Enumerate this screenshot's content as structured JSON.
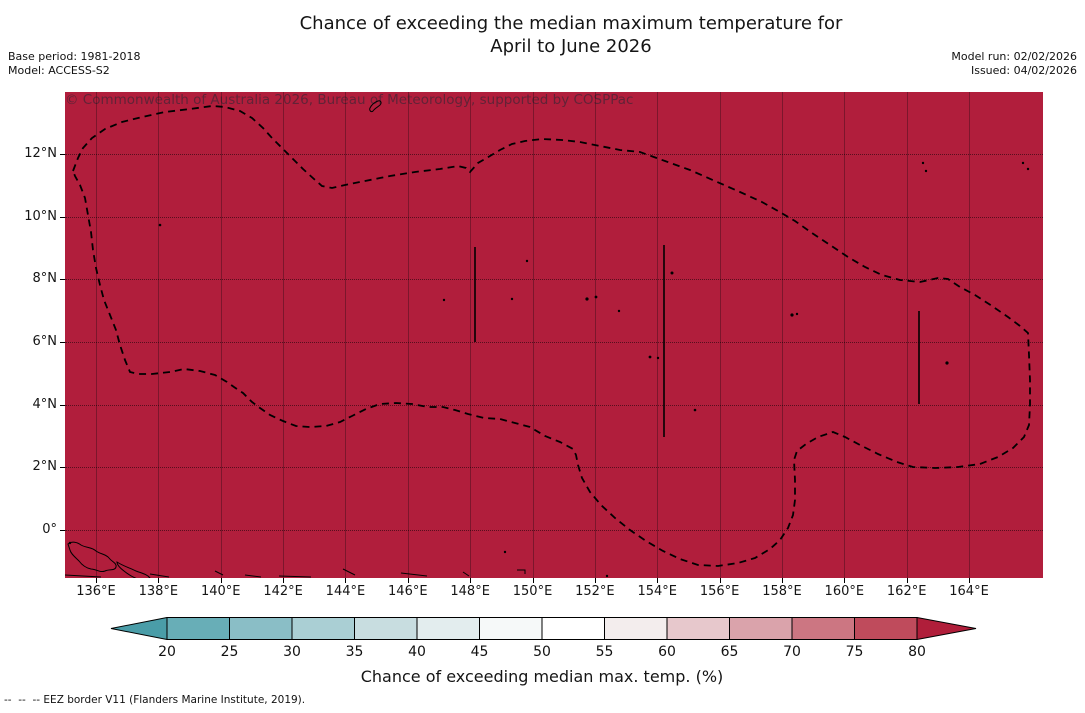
{
  "title": {
    "line1": "Chance of exceeding the median maximum temperature for",
    "line2": "April to June 2026"
  },
  "meta_left": {
    "base_period": "Base period: 1981-2018",
    "model": "Model: ACCESS-S2"
  },
  "meta_right": {
    "model_run": "Model run: 02/02/2026",
    "issued": "Issued: 04/02/2026"
  },
  "map": {
    "watermark": "© Commonwealth of Australia 2026, Bureau of Meteorology, supported by COSPPac",
    "fill_color": "#b11e3c",
    "boundary_color": "#000000",
    "shown_probability_bin": "> 80 %",
    "x_tick_labels": [
      "136°E",
      "138°E",
      "140°E",
      "142°E",
      "144°E",
      "146°E",
      "148°E",
      "150°E",
      "152°E",
      "154°E",
      "156°E",
      "158°E",
      "160°E",
      "162°E",
      "164°E"
    ],
    "y_tick_labels": [
      "12°N",
      "10°N",
      "8°N",
      "6°N",
      "4°N",
      "2°N",
      "0°"
    ]
  },
  "colorbar": {
    "label": "Chance of exceeding median max. temp. (%)",
    "tick_labels": [
      "20",
      "25",
      "30",
      "35",
      "40",
      "45",
      "50",
      "55",
      "60",
      "65",
      "70",
      "75",
      "80"
    ],
    "bin_colors": [
      "#68aeb7",
      "#8abec6",
      "#aacfd4",
      "#c8dde0",
      "#e3edee",
      "#f6f9f9",
      "#ffffff",
      "#f3eded",
      "#e7c8cc",
      "#daa3ab",
      "#cc7682",
      "#bf4b5c"
    ],
    "under_arrow_color": "#4a9da8",
    "over_arrow_color": "#b01e3a"
  },
  "footer": {
    "eez_note": "--  --  -- EEZ border V11 (Flanders Marine Institute, 2019)."
  }
}
